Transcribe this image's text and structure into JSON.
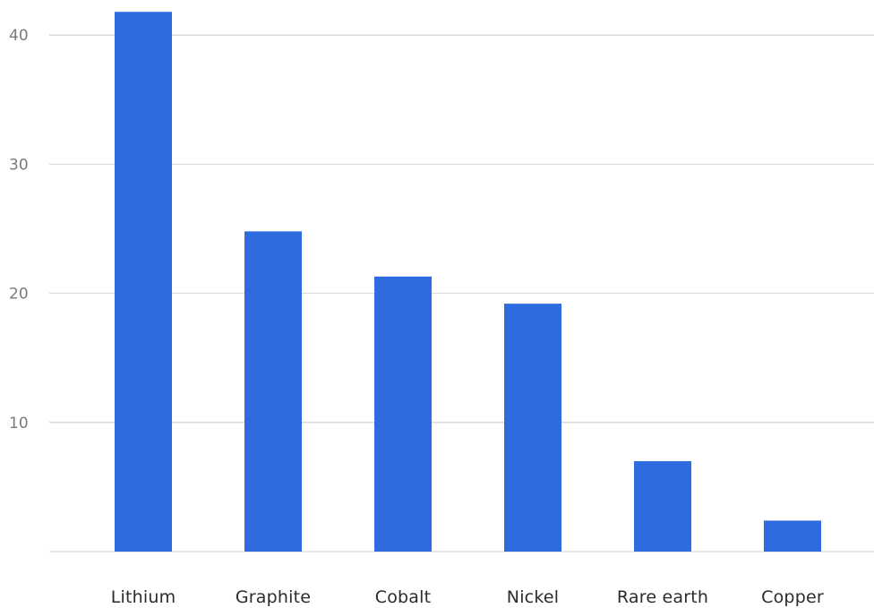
{
  "chart_data": {
    "type": "bar",
    "title": "",
    "xlabel": "",
    "ylabel": "",
    "categories": [
      "Lithium",
      "Graphite",
      "Cobalt",
      "Nickel",
      "Rare earth",
      "Copper"
    ],
    "values": [
      41.8,
      24.8,
      21.3,
      19.2,
      7.0,
      2.4
    ],
    "ylim": [
      0,
      42
    ],
    "y_ticks": [
      10,
      20,
      30,
      40
    ],
    "grid": true,
    "legend": "none",
    "colors": {
      "bar": "#2d6bdf",
      "grid": "#d9d9d9",
      "baseline": "#cfcfcf",
      "tick_label": "#7a7a7a",
      "category_label": "#2b2b2b"
    }
  }
}
